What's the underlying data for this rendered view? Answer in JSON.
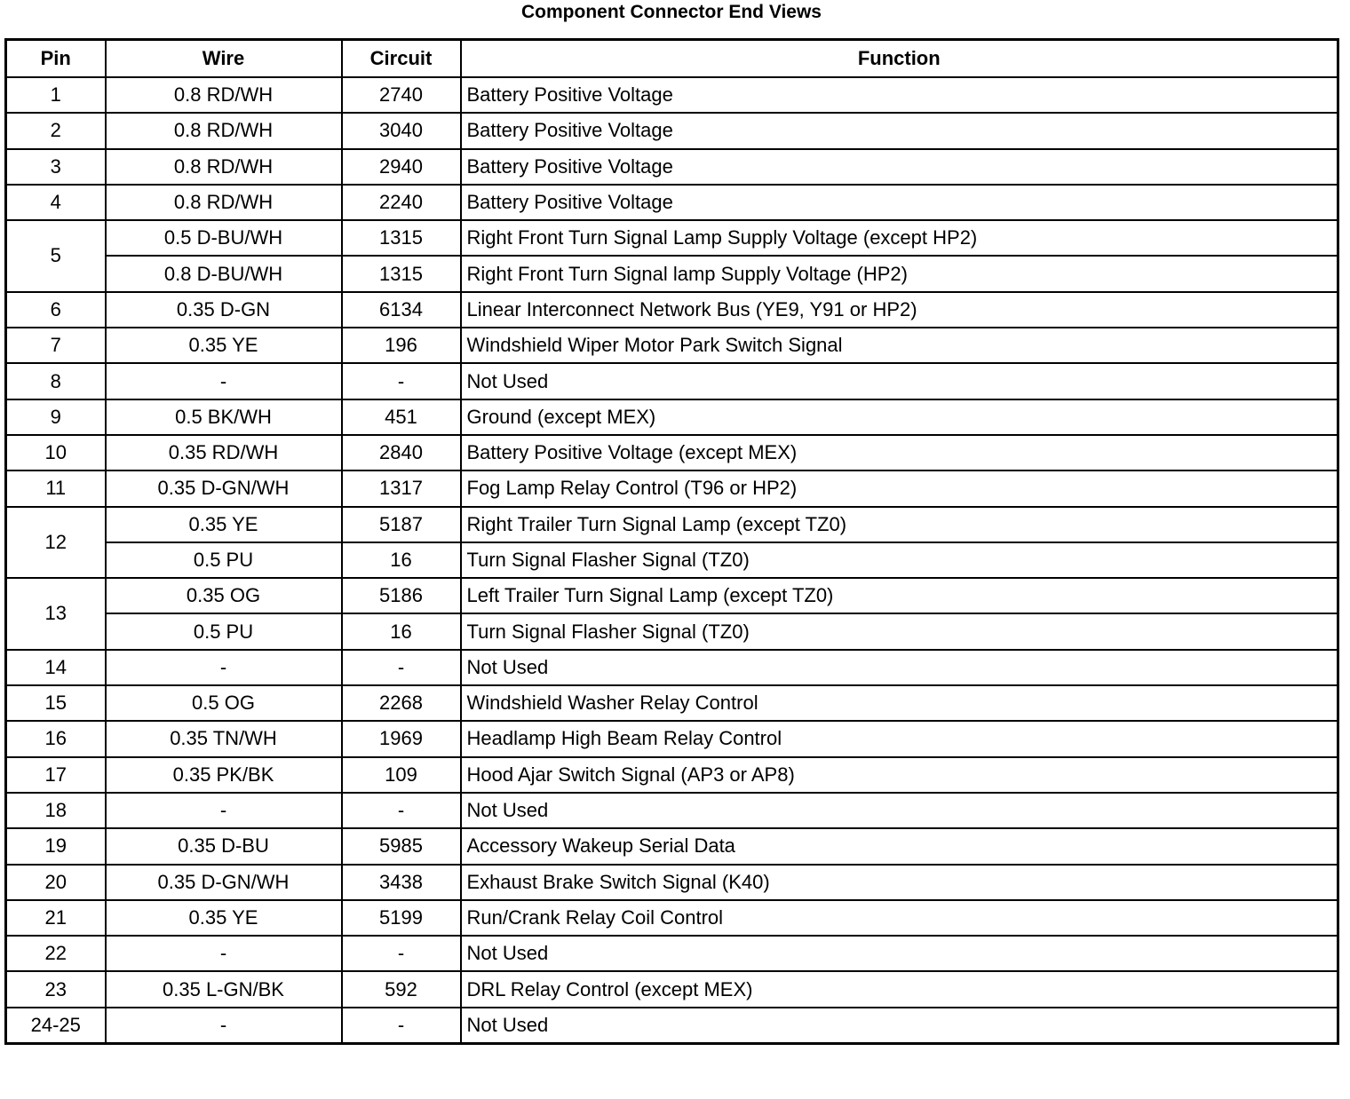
{
  "title": "Component Connector End Views",
  "headers": {
    "pin": "Pin",
    "wire": "Wire",
    "circuit": "Circuit",
    "function": "Function"
  },
  "rows": [
    {
      "pin": "1",
      "entries": [
        {
          "wire": "0.8 RD/WH",
          "circuit": "2740",
          "function": "Battery Positive Voltage"
        }
      ]
    },
    {
      "pin": "2",
      "entries": [
        {
          "wire": "0.8 RD/WH",
          "circuit": "3040",
          "function": "Battery Positive Voltage"
        }
      ]
    },
    {
      "pin": "3",
      "entries": [
        {
          "wire": "0.8 RD/WH",
          "circuit": "2940",
          "function": "Battery Positive Voltage"
        }
      ]
    },
    {
      "pin": "4",
      "entries": [
        {
          "wire": "0.8 RD/WH",
          "circuit": "2240",
          "function": "Battery Positive Voltage"
        }
      ]
    },
    {
      "pin": "5",
      "entries": [
        {
          "wire": "0.5 D-BU/WH",
          "circuit": "1315",
          "function": "Right Front Turn Signal Lamp Supply Voltage (except HP2)"
        },
        {
          "wire": "0.8 D-BU/WH",
          "circuit": "1315",
          "function": "Right Front Turn Signal lamp Supply Voltage (HP2)"
        }
      ]
    },
    {
      "pin": "6",
      "entries": [
        {
          "wire": "0.35 D-GN",
          "circuit": "6134",
          "function": "Linear Interconnect Network Bus (YE9, Y91 or HP2)"
        }
      ]
    },
    {
      "pin": "7",
      "entries": [
        {
          "wire": "0.35 YE",
          "circuit": "196",
          "function": "Windshield Wiper Motor Park Switch Signal"
        }
      ]
    },
    {
      "pin": "8",
      "entries": [
        {
          "wire": "-",
          "circuit": "-",
          "function": "Not Used"
        }
      ]
    },
    {
      "pin": "9",
      "entries": [
        {
          "wire": "0.5 BK/WH",
          "circuit": "451",
          "function": "Ground (except MEX)"
        }
      ]
    },
    {
      "pin": "10",
      "entries": [
        {
          "wire": "0.35 RD/WH",
          "circuit": "2840",
          "function": "Battery Positive Voltage (except MEX)"
        }
      ]
    },
    {
      "pin": "11",
      "entries": [
        {
          "wire": "0.35 D-GN/WH",
          "circuit": "1317",
          "function": "Fog Lamp Relay Control (T96 or HP2)"
        }
      ]
    },
    {
      "pin": "12",
      "entries": [
        {
          "wire": "0.35 YE",
          "circuit": "5187",
          "function": "Right Trailer Turn Signal Lamp (except TZ0)"
        },
        {
          "wire": "0.5 PU",
          "circuit": "16",
          "function": "Turn Signal Flasher Signal (TZ0)"
        }
      ]
    },
    {
      "pin": "13",
      "entries": [
        {
          "wire": "0.35 OG",
          "circuit": "5186",
          "function": "Left Trailer Turn Signal Lamp (except TZ0)"
        },
        {
          "wire": "0.5 PU",
          "circuit": "16",
          "function": "Turn Signal Flasher Signal (TZ0)"
        }
      ]
    },
    {
      "pin": "14",
      "entries": [
        {
          "wire": "-",
          "circuit": "-",
          "function": "Not Used"
        }
      ]
    },
    {
      "pin": "15",
      "entries": [
        {
          "wire": "0.5 OG",
          "circuit": "2268",
          "function": "Windshield Washer Relay Control"
        }
      ]
    },
    {
      "pin": "16",
      "entries": [
        {
          "wire": "0.35 TN/WH",
          "circuit": "1969",
          "function": "Headlamp High Beam Relay Control"
        }
      ]
    },
    {
      "pin": "17",
      "entries": [
        {
          "wire": "0.35 PK/BK",
          "circuit": "109",
          "function": "Hood Ajar Switch Signal (AP3 or AP8)"
        }
      ]
    },
    {
      "pin": "18",
      "entries": [
        {
          "wire": "-",
          "circuit": "-",
          "function": "Not Used"
        }
      ]
    },
    {
      "pin": "19",
      "entries": [
        {
          "wire": "0.35 D-BU",
          "circuit": "5985",
          "function": "Accessory Wakeup Serial Data"
        }
      ]
    },
    {
      "pin": "20",
      "entries": [
        {
          "wire": "0.35 D-GN/WH",
          "circuit": "3438",
          "function": "Exhaust Brake Switch Signal (K40)"
        }
      ]
    },
    {
      "pin": "21",
      "entries": [
        {
          "wire": "0.35 YE",
          "circuit": "5199",
          "function": "Run/Crank Relay Coil Control"
        }
      ]
    },
    {
      "pin": "22",
      "entries": [
        {
          "wire": "-",
          "circuit": "-",
          "function": "Not Used"
        }
      ]
    },
    {
      "pin": "23",
      "entries": [
        {
          "wire": "0.35 L-GN/BK",
          "circuit": "592",
          "function": "DRL Relay Control (except MEX)"
        }
      ]
    },
    {
      "pin": "24-25",
      "entries": [
        {
          "wire": "-",
          "circuit": "-",
          "function": "Not Used"
        }
      ]
    }
  ]
}
